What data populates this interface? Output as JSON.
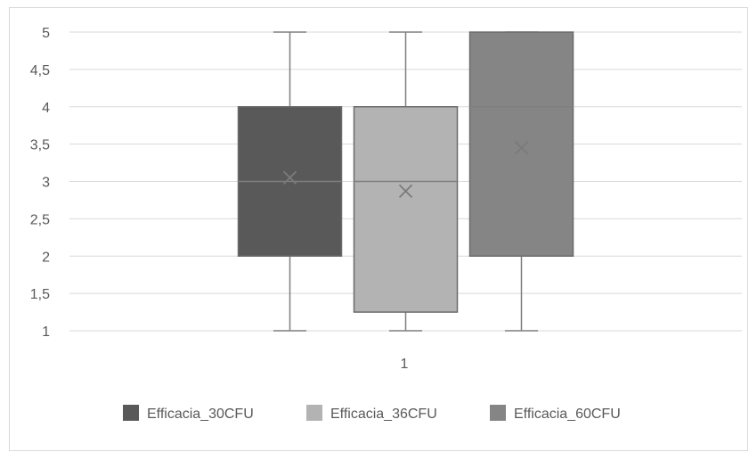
{
  "chart_data": {
    "type": "box",
    "categories": [
      "1"
    ],
    "ylim": [
      1,
      5
    ],
    "yticks": [
      "1",
      "1,5",
      "2",
      "2,5",
      "3",
      "3,5",
      "4",
      "4,5",
      "5"
    ],
    "ytick_values": [
      1,
      1.5,
      2,
      2.5,
      3,
      3.5,
      4,
      4.5,
      5
    ],
    "grid": true,
    "legend_position": "bottom",
    "series": [
      {
        "name": "Efficacia_30CFU",
        "color": "#595959",
        "min": 1,
        "q1": 2,
        "median": 3,
        "q3": 4,
        "max": 5,
        "mean": 3.05
      },
      {
        "name": "Efficacia_36CFU",
        "color": "#b3b3b3",
        "min": 1,
        "q1": 1.25,
        "median": 3,
        "q3": 4,
        "max": 5,
        "mean": 2.87
      },
      {
        "name": "Efficacia_60CFU",
        "color": "#858585",
        "min": 1,
        "q1": 2,
        "median": 4,
        "q3": 5,
        "max": 5,
        "mean": 3.45
      }
    ]
  }
}
